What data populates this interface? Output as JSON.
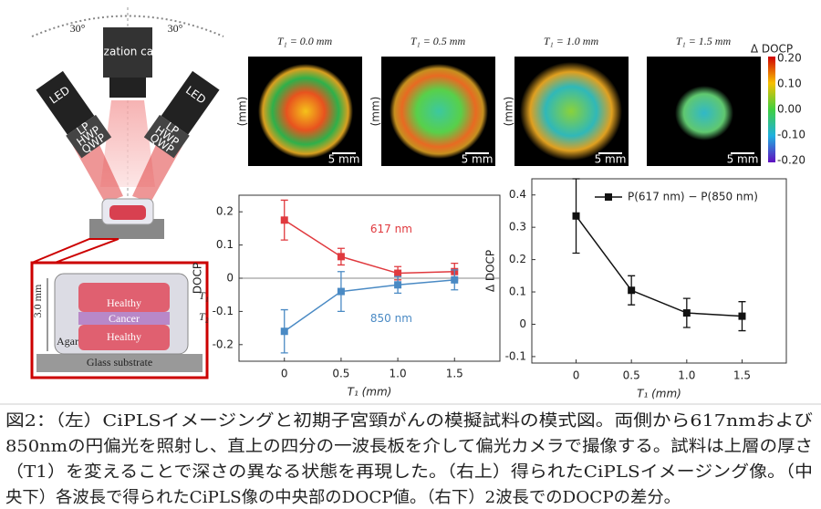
{
  "chart_data": [
    {
      "type": "line",
      "ylabel": "DOCP",
      "xlabel": "T₁ (mm)",
      "x": [
        0,
        0.5,
        1,
        1.5
      ],
      "xlim": [
        -0.4,
        1.9
      ],
      "xticks": [
        0,
        0.5,
        {
          "value": 1,
          "label": "1.0"
        },
        1.5
      ],
      "ylim": [
        -0.25,
        0.25
      ],
      "yticks": [
        -0.2,
        -0.1,
        0,
        0.1,
        0.2
      ],
      "zero_line": true,
      "series": [
        {
          "name": "617 nm",
          "color": "#e0393e",
          "values": [
            0.175,
            0.065,
            0.015,
            0.02
          ],
          "errors": [
            0.06,
            0.025,
            0.02,
            0.025
          ]
        },
        {
          "name": "850 nm",
          "color": "#4a8ac4",
          "values": [
            -0.16,
            -0.04,
            -0.02,
            -0.005
          ],
          "errors": [
            0.065,
            0.06,
            0.025,
            0.03
          ]
        }
      ]
    },
    {
      "type": "line",
      "ylabel": "Δ DOCP",
      "xlabel": "T₁ (mm)",
      "x": [
        0,
        0.5,
        1,
        1.5
      ],
      "xlim": [
        -0.4,
        1.9
      ],
      "xticks": [
        0,
        0.5,
        {
          "value": 1,
          "label": "1.0"
        },
        1.5
      ],
      "ylim": [
        -0.12,
        0.45
      ],
      "yticks": [
        -0.1,
        0,
        0.1,
        0.2,
        0.3,
        0.4
      ],
      "legend": "top-right",
      "series": [
        {
          "name": "P(617 nm) − P(850 nm)",
          "color": "#111111",
          "values": [
            0.335,
            0.105,
            0.035,
            0.025
          ],
          "errors": [
            0.115,
            0.045,
            0.045,
            0.045
          ]
        }
      ]
    }
  ],
  "images": {
    "axis_label": "(mm)",
    "panels": [
      {
        "title": "T₁ = 0.0 mm",
        "scale": "5 mm"
      },
      {
        "title": "T₁ = 0.5 mm",
        "scale": "5 mm"
      },
      {
        "title": "T₁ = 1.0 mm",
        "scale": "5 mm"
      },
      {
        "title": "T₁ = 1.5 mm",
        "scale": "5 mm"
      }
    ],
    "colorbar": {
      "title": "Δ DOCP",
      "ticks": [
        "0.20",
        "0.10",
        "0.00",
        "-0.10",
        "-0.20"
      ]
    }
  },
  "diagram": {
    "angle_left": "30°",
    "angle_right": "30°",
    "camera": "Polarization camera",
    "led": "LED",
    "lp": "LP",
    "hwp": "HWP",
    "qwp": "QWP",
    "layers": [
      "Healthy",
      "Cancer",
      "Healthy"
    ],
    "agarose": "Agarose",
    "substrate": "Glass substrate",
    "height": "3.0 mm",
    "t1": "T₁",
    "t2": "T₂"
  },
  "caption": [
    "図2：（左）CiPLSイメージングと初期子宮頸がんの模擬試料の模式図。両側から617nmおよび",
    "850nmの円偏光を照射し、直上の四分の一波長板を介して偏光カメラで撮像する。試料は上層の厚さ",
    "（T1）を変えることで深さの異なる状態を再現した。（右上）得られたCiPLSイメージング像。（中",
    "央下）各波長で得られたCiPLS像の中央部のDOCP値。（右下）2波長でのDOCPの差分。"
  ]
}
